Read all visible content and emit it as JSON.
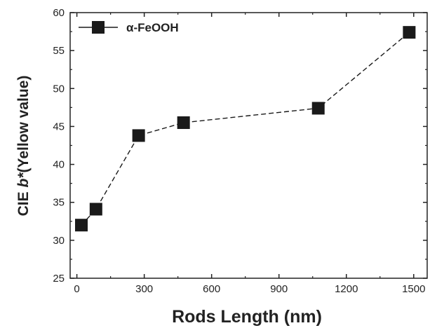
{
  "chart_data": {
    "type": "scatter",
    "xlabel": "Rods Length (nm)",
    "ylabel_prefix": "CIE ",
    "ylabel_var": "b*",
    "ylabel_suffix": "(Yellow value)",
    "xlim": [
      -30,
      1560
    ],
    "ylim": [
      25,
      60
    ],
    "xticks": [
      0,
      300,
      600,
      900,
      1200,
      1500
    ],
    "yticks": [
      25,
      30,
      35,
      40,
      45,
      50,
      55,
      60
    ],
    "grid": false,
    "legend_position": "top-left",
    "series": [
      {
        "name": "α-FeOOH",
        "marker": "square",
        "line_style": "dashed",
        "color": "#1a1a1a",
        "x": [
          20,
          85,
          275,
          475,
          1075,
          1480
        ],
        "y": [
          32.0,
          34.1,
          43.8,
          45.5,
          47.4,
          57.4
        ]
      }
    ]
  }
}
